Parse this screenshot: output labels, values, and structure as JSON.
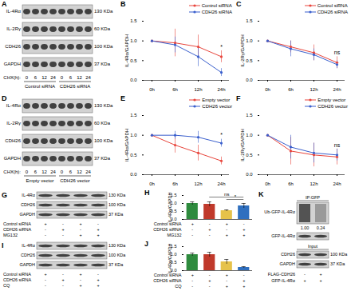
{
  "chart_data": [
    {
      "panel": "B",
      "type": "line",
      "categories": [
        "0h",
        "6h",
        "12h",
        "24h"
      ],
      "y_label": "IL-4Rα/GAPDH",
      "ylim": [
        0,
        1.5
      ],
      "yticks": [
        {
          "value": 0,
          "label": "0.0"
        },
        {
          "value": 0.5,
          "label": "0.5"
        },
        {
          "value": 1,
          "label": "1.0"
        },
        {
          "value": 1.5,
          "label": "1.5"
        }
      ],
      "legend": "top-right",
      "marker": "circle",
      "series": [
        {
          "name": "Control siRNA",
          "color": "#e8453c",
          "values": [
            1,
            0.95,
            0.85,
            0.6
          ],
          "errors": [
            0,
            0.35,
            0.3,
            0.15
          ]
        },
        {
          "name": "CDH26 siRNA",
          "color": "#3a5fcd",
          "values": [
            1,
            0.9,
            0.6,
            0.2
          ],
          "errors": [
            0,
            0.2,
            0.25,
            0.1
          ]
        }
      ],
      "annotations": [
        {
          "text": "*",
          "category": "24h"
        }
      ]
    },
    {
      "panel": "C",
      "type": "line",
      "categories": [
        "0h",
        "6h",
        "12h",
        "24h"
      ],
      "y_label": "IL-2Rγ/GAPDH",
      "ylim": [
        0,
        1.5
      ],
      "yticks": [
        {
          "value": 0,
          "label": "0.0"
        },
        {
          "value": 0.5,
          "label": "0.5"
        },
        {
          "value": 1,
          "label": "1.0"
        },
        {
          "value": 1.5,
          "label": "1.5"
        }
      ],
      "legend": "top-right",
      "marker": "circle",
      "series": [
        {
          "name": "Control siRNA",
          "color": "#e8453c",
          "values": [
            1,
            0.85,
            0.7,
            0.45
          ],
          "errors": [
            0,
            0.15,
            0.2,
            0.15
          ]
        },
        {
          "name": "CDH26 siRNA",
          "color": "#3a5fcd",
          "values": [
            1,
            0.8,
            0.65,
            0.4
          ],
          "errors": [
            0,
            0.2,
            0.15,
            0.1
          ]
        }
      ],
      "annotations": [
        {
          "text": "ns",
          "category": "24h"
        }
      ]
    },
    {
      "panel": "E",
      "type": "line",
      "categories": [
        "0h",
        "6h",
        "12h",
        "24h"
      ],
      "y_label": "IL-4Rα/GAPDH",
      "ylim": [
        0,
        1.5
      ],
      "yticks": [
        {
          "value": 0,
          "label": "0.0"
        },
        {
          "value": 0.5,
          "label": "0.5"
        },
        {
          "value": 1,
          "label": "1.0"
        },
        {
          "value": 1.5,
          "label": "1.5"
        }
      ],
      "legend": "top-right",
      "marker": "circle",
      "series": [
        {
          "name": "Empty vector",
          "color": "#e8453c",
          "values": [
            1,
            0.75,
            0.55,
            0.35
          ],
          "errors": [
            0,
            0.2,
            0.2,
            0.1
          ]
        },
        {
          "name": "CDH26 vector",
          "color": "#3a5fcd",
          "values": [
            1,
            1.0,
            0.95,
            0.8
          ],
          "errors": [
            0,
            0.1,
            0.15,
            0.1
          ]
        }
      ],
      "annotations": [
        {
          "text": "*",
          "category": "24h"
        }
      ]
    },
    {
      "panel": "F",
      "type": "line",
      "categories": [
        "0h",
        "6h",
        "12h",
        "24h"
      ],
      "y_label": "IL-2Rγ/GAPDH",
      "ylim": [
        0,
        1.5
      ],
      "yticks": [
        {
          "value": 0,
          "label": "0.0"
        },
        {
          "value": 0.5,
          "label": "0.5"
        },
        {
          "value": 1,
          "label": "1.0"
        },
        {
          "value": 1.5,
          "label": "1.5"
        }
      ],
      "legend": "top-right",
      "marker": "circle",
      "series": [
        {
          "name": "Empty vector",
          "color": "#e8453c",
          "values": [
            1,
            0.6,
            0.5,
            0.45
          ],
          "errors": [
            0,
            0.35,
            0.3,
            0.2
          ]
        },
        {
          "name": "CDH26 vector",
          "color": "#3a5fcd",
          "values": [
            1,
            0.7,
            0.55,
            0.5
          ],
          "errors": [
            0,
            0.3,
            0.25,
            0.15
          ]
        }
      ],
      "annotations": [
        {
          "text": "ns",
          "category": "24h"
        }
      ]
    },
    {
      "panel": "H",
      "type": "bar",
      "categories": [
        null,
        null,
        null,
        null
      ],
      "y_label": "IL-4Rα/GAPDH",
      "ylim": [
        0,
        1.5
      ],
      "yticks": [
        {
          "value": 0,
          "label": "0.0"
        },
        {
          "value": 0.5,
          "label": "0.5"
        },
        {
          "value": 1,
          "label": "1.0"
        },
        {
          "value": 1.5,
          "label": "1.5"
        }
      ],
      "tick_labels": "y",
      "values": [
        1.0,
        0.95,
        0.55,
        0.85
      ],
      "errors": [
        0.1,
        0.15,
        0.05,
        0.15
      ],
      "colors": [
        "#2e8b3e",
        "#c0392b",
        "#e6c24a",
        "#2f6fbf"
      ],
      "treatments": [
        {
          "name": "Control siRNA",
          "signs": [
            "+",
            "-",
            "+",
            "-"
          ]
        },
        {
          "name": "CDH26 siRNA",
          "signs": [
            "-",
            "+",
            "-",
            "+"
          ]
        },
        {
          "name": "MG132",
          "signs": [
            "-",
            "-",
            "+",
            "+"
          ]
        }
      ],
      "annotations": [
        {
          "text": "ns",
          "from": 1,
          "to": 3
        },
        {
          "text": "*",
          "from": 2,
          "to": 3
        }
      ]
    },
    {
      "panel": "J",
      "type": "bar",
      "categories": [
        null,
        null,
        null,
        null
      ],
      "y_label": "IL-4Rα/GAPDH",
      "ylim": [
        0,
        1.5
      ],
      "yticks": [
        {
          "value": 0,
          "label": "0.0"
        },
        {
          "value": 0.5,
          "label": "0.5"
        },
        {
          "value": 1,
          "label": "1.0"
        },
        {
          "value": 1.5,
          "label": "1.5"
        }
      ],
      "tick_labels": "y",
      "values": [
        1.0,
        1.0,
        0.55,
        0.2
      ],
      "errors": [
        0.1,
        0.15,
        0.15,
        0.05
      ],
      "colors": [
        "#2e8b3e",
        "#c0392b",
        "#e6c24a",
        "#2f6fbf"
      ],
      "treatments": [
        {
          "name": "Control siRNA",
          "signs": [
            "+",
            "-",
            "+",
            "-"
          ]
        },
        {
          "name": "CDH26 siRNA",
          "signs": [
            "-",
            "+",
            "-",
            "+"
          ]
        },
        {
          "name": "CQ",
          "signs": [
            "-",
            "-",
            "+",
            "+"
          ]
        }
      ],
      "annotations": []
    }
  ],
  "blots": [
    {
      "panel": "A",
      "rows": [
        "IL-4Rα",
        "IL-2Rγ",
        "CDH26",
        "GAPDH"
      ],
      "mw": [
        "130 KDa",
        "60 KDa",
        "100 KDa",
        "37 KDa"
      ],
      "lane_axis": "CHX(h):",
      "lanes": [
        "0",
        "6",
        "12",
        "24",
        "0",
        "6",
        "12",
        "24"
      ],
      "groups": [
        "Control siRNA",
        "CDH26 siRNA"
      ]
    },
    {
      "panel": "D",
      "rows": [
        "IL-4Rα",
        "IL-2Rγ",
        "CDH26",
        "GAPDH"
      ],
      "mw": [
        "130 KDa",
        "60 KDa",
        "100 KDa",
        "37 KDa"
      ],
      "lane_axis": "CHX(h):",
      "lanes": [
        "0",
        "6",
        "12",
        "24",
        "0",
        "6",
        "12",
        "24"
      ],
      "groups": [
        "Empty vector",
        "CDH26 vector"
      ]
    },
    {
      "panel": "G",
      "rows": [
        "IL-4Rα",
        "CDH26",
        "GAPDH"
      ],
      "mw": [
        "130 KDa",
        "100 KDa",
        "37 KDa"
      ],
      "treatments": [
        {
          "name": "Control siRNA",
          "signs": [
            "+",
            "-",
            "+",
            "-"
          ]
        },
        {
          "name": "CDH26 siRNA",
          "signs": [
            "-",
            "+",
            "-",
            "+"
          ]
        },
        {
          "name": "MG132",
          "signs": [
            "-",
            "-",
            "+",
            "+"
          ]
        }
      ]
    },
    {
      "panel": "I",
      "rows": [
        "IL-4Rα",
        "CDH26",
        "GAPDH"
      ],
      "mw": [
        "130 KDa",
        "100 KDa",
        "37 KDa"
      ],
      "treatments": [
        {
          "name": "Control siRNA",
          "signs": [
            "+",
            "-",
            "+",
            "-"
          ]
        },
        {
          "name": "CDH26 siRNA",
          "signs": [
            "-",
            "+",
            "-",
            "+"
          ]
        },
        {
          "name": "CQ",
          "signs": [
            "-",
            "-",
            "+",
            "+"
          ]
        }
      ]
    },
    {
      "panel": "K",
      "header": "IP:GFP",
      "ip_rows": [
        "Ub-GFP-IL-4Rα",
        "GFP-IL-4Rα"
      ],
      "quantification": [
        "1.00",
        "0.24"
      ],
      "input_header": "Input",
      "input_rows": [
        "CDH26",
        "GAPDH"
      ],
      "input_mw": [
        "100 KDa",
        "37 KDa"
      ],
      "treatments": [
        {
          "name": "FLAG-CDH26",
          "signs": [
            "-",
            "+"
          ]
        },
        {
          "name": "GFP-IL-4Rα",
          "signs": [
            "+",
            "+"
          ]
        }
      ]
    }
  ]
}
